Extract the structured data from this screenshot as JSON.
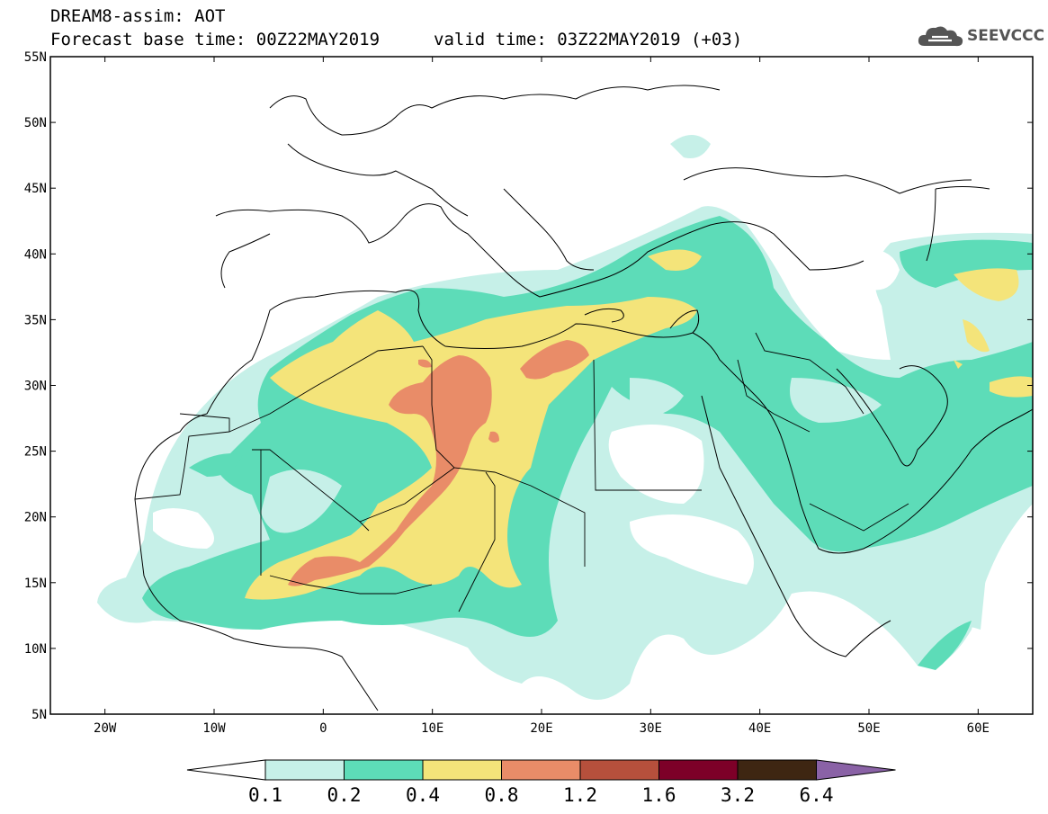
{
  "header": {
    "title_line1": "DREAM8-assim: AOT",
    "title_line2": "Forecast base time: 00Z22MAY2019",
    "valid_time": "valid time: 03Z22MAY2019 (+03)",
    "logo_text": "SEEVCCC"
  },
  "map": {
    "lat_labels": [
      "55N",
      "50N",
      "45N",
      "40N",
      "35N",
      "30N",
      "25N",
      "20N",
      "15N",
      "10N",
      "5N"
    ],
    "lon_labels": [
      "20W",
      "10W",
      "0",
      "10E",
      "20E",
      "30E",
      "40E",
      "50E",
      "60E"
    ],
    "lon_range": [
      -25,
      65
    ],
    "lat_range": [
      5,
      55
    ],
    "field": "Aerosol optical thickness (dust)"
  },
  "colorbar": {
    "labels": [
      "0.1",
      "0.2",
      "0.4",
      "0.8",
      "1.2",
      "1.6",
      "3.2",
      "6.4"
    ],
    "colors": [
      "#ffffff",
      "#c6f0e8",
      "#5ddcb8",
      "#f4e47a",
      "#e98c68",
      "#b6503c",
      "#7d0028",
      "#3e2612",
      "#8a62a6"
    ]
  }
}
